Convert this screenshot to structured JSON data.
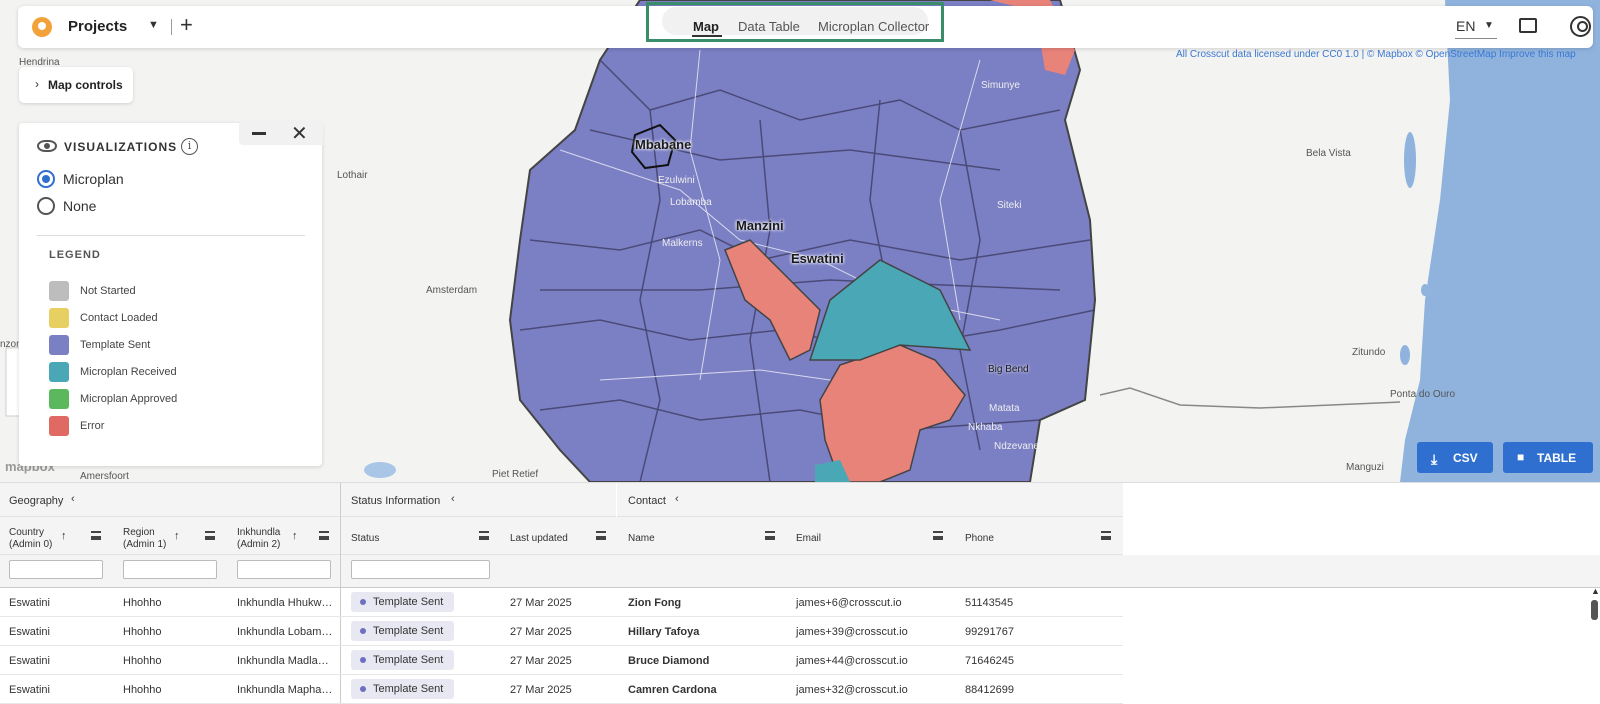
{
  "topbar": {
    "project_label": "Projects",
    "tabs": [
      {
        "label": "Map",
        "active": true
      },
      {
        "label": "Data Table",
        "active": false
      },
      {
        "label": "Microplan Collector",
        "active": false
      }
    ],
    "language": "EN",
    "icons": {
      "logo": "app-logo",
      "caret": "chevron-down-icon",
      "add": "plus-icon",
      "messages": "chat-icon",
      "account": "user-circle-icon"
    }
  },
  "map": {
    "attribution": "All Crosscut data licensed under CC0 1.0 | © Mapbox © OpenStreetMap Improve this map",
    "controls_label": "Map controls",
    "mapbox_logo": "mapbox",
    "labels": {
      "hendrina": "Hendrina",
      "mbabane": "Mbabane",
      "manzini": "Manzini",
      "eswatini": "Eswatini",
      "lothair": "Lothair",
      "amsterdam": "Amsterdam",
      "ezulwini": "Ezulwini",
      "lobamba": "Lobamba",
      "malkerns": "Malkerns",
      "simunye": "Simunye",
      "siteki": "Siteki",
      "bigbend": "Big Bend",
      "matata": "Matata",
      "nkhaba": "Nkhaba",
      "ndzevane": "Ndzevane",
      "belavista": "Bela Vista",
      "zitundo": "Zitundo",
      "pontadoouro": "Ponta do Ouro",
      "manguzi": "Manguzi",
      "pietretief": "Piet Retief",
      "amersfoort": "Amersfoort",
      "ermelo": "nzon"
    },
    "colors": {
      "template_sent": "#7b7fc4",
      "error": "#e8837a",
      "received": "#4aa7b5",
      "water": "#8fb3dd"
    }
  },
  "visualizations": {
    "title": "VISUALIZATIONS",
    "options": [
      {
        "label": "Microplan",
        "selected": true
      },
      {
        "label": "None",
        "selected": false
      }
    ],
    "legend_title": "LEGEND",
    "legend": [
      {
        "label": "Not Started",
        "color": "#bdbdbd"
      },
      {
        "label": "Contact Loaded",
        "color": "#e8cf62"
      },
      {
        "label": "Template Sent",
        "color": "#7b7fc4"
      },
      {
        "label": "Microplan Received",
        "color": "#4aa7b5"
      },
      {
        "label": "Microplan Approved",
        "color": "#5cb85c"
      },
      {
        "label": "Error",
        "color": "#e06a63"
      }
    ]
  },
  "buttons": {
    "csv": "CSV",
    "table": "TABLE"
  },
  "grid": {
    "groups": {
      "geography": "Geography",
      "status": "Status Information",
      "contact": "Contact"
    },
    "columns": {
      "country": "Country\n(Admin 0)",
      "region": "Region\n(Admin 1)",
      "inkhundla": "Inkhundla\n(Admin 2)",
      "status": "Status",
      "last_updated": "Last updated",
      "name": "Name",
      "email": "Email",
      "phone": "Phone"
    },
    "rows": [
      {
        "country": "Eswatini",
        "region": "Hhohho",
        "inkhundla": "Inkhundla Hhukw…",
        "status": "Template Sent",
        "last_updated": "27 Mar 2025",
        "name": "Zion Fong",
        "email": "james+6@crosscut.io",
        "phone": "51143545"
      },
      {
        "country": "Eswatini",
        "region": "Hhohho",
        "inkhundla": "Inkhundla Lobam…",
        "status": "Template Sent",
        "last_updated": "27 Mar 2025",
        "name": "Hillary Tafoya",
        "email": "james+39@crosscut.io",
        "phone": "99291767"
      },
      {
        "country": "Eswatini",
        "region": "Hhohho",
        "inkhundla": "Inkhundla Madla…",
        "status": "Template Sent",
        "last_updated": "27 Mar 2025",
        "name": "Bruce Diamond",
        "email": "james+44@crosscut.io",
        "phone": "71646245"
      },
      {
        "country": "Eswatini",
        "region": "Hhohho",
        "inkhundla": "Inkhundla Mapha…",
        "status": "Template Sent",
        "last_updated": "27 Mar 2025",
        "name": "Camren Cardona",
        "email": "james+32@crosscut.io",
        "phone": "88412699"
      }
    ]
  }
}
